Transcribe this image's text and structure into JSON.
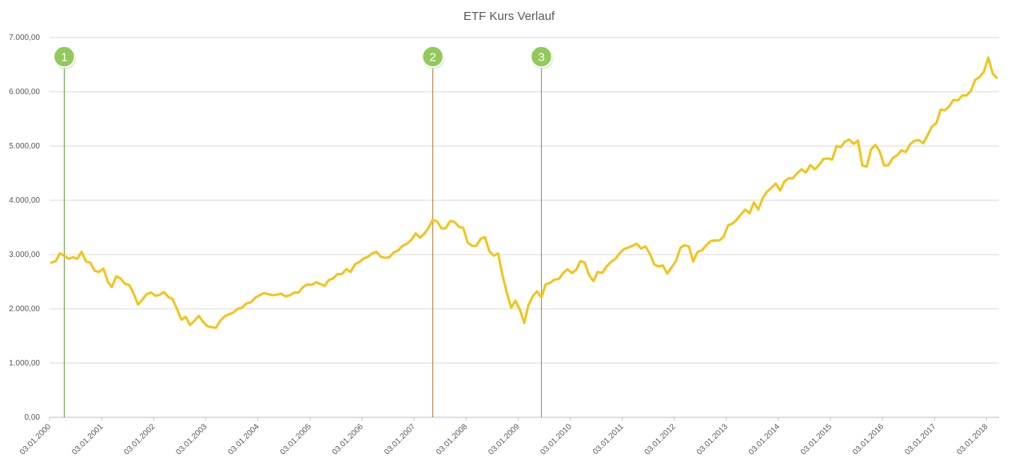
{
  "chart_data": {
    "type": "line",
    "title": "ETF Kurs Verlauf",
    "xlabel": "",
    "ylabel": "",
    "x_range": [
      "03.01.2000",
      "31.03.2018"
    ],
    "ylim": [
      0,
      7000
    ],
    "y_ticks": [
      0,
      1000,
      2000,
      3000,
      4000,
      5000,
      6000,
      7000
    ],
    "y_tick_labels": [
      "0,00",
      "1.000,00",
      "2.000,00",
      "3.000,00",
      "4.000,00",
      "5.000,00",
      "6.000,00",
      "7.000,00"
    ],
    "x_ticks": [
      "03.01.2000",
      "03.01.2001",
      "03.01.2002",
      "03.01.2003",
      "03.01.2004",
      "03.01.2005",
      "03.01.2006",
      "03.01.2007",
      "03.01.2008",
      "03.01.2009",
      "03.01.2010",
      "03.01.2011",
      "03.01.2012",
      "03.01.2013",
      "03.01.2014",
      "03.01.2015",
      "03.01.2016",
      "03.01.2017",
      "03.01.2018"
    ],
    "grid": true,
    "legend": "none",
    "series_color": "#F2C41A",
    "series": [
      {
        "x": [
          "2000-01",
          "2000-02",
          "2000-03",
          "2000-04",
          "2000-05",
          "2000-06",
          "2000-07",
          "2000-08",
          "2000-09",
          "2000-10",
          "2000-11",
          "2000-12",
          "2001-01",
          "2001-02",
          "2001-03",
          "2001-04",
          "2001-05",
          "2001-06",
          "2001-07",
          "2001-08",
          "2001-09",
          "2001-10",
          "2001-11",
          "2001-12",
          "2002-01",
          "2002-02",
          "2002-03",
          "2002-04",
          "2002-05",
          "2002-06",
          "2002-07",
          "2002-08",
          "2002-09",
          "2002-10",
          "2002-11",
          "2002-12",
          "2003-01",
          "2003-02",
          "2003-03",
          "2003-04",
          "2003-05",
          "2003-06",
          "2003-07",
          "2003-08",
          "2003-09",
          "2003-10",
          "2003-11",
          "2003-12",
          "2004-01",
          "2004-02",
          "2004-03",
          "2004-04",
          "2004-05",
          "2004-06",
          "2004-07",
          "2004-08",
          "2004-09",
          "2004-10",
          "2004-11",
          "2004-12",
          "2005-01",
          "2005-02",
          "2005-03",
          "2005-04",
          "2005-05",
          "2005-06",
          "2005-07",
          "2005-08",
          "2005-09",
          "2005-10",
          "2005-11",
          "2005-12",
          "2006-01",
          "2006-02",
          "2006-03",
          "2006-04",
          "2006-05",
          "2006-06",
          "2006-07",
          "2006-08",
          "2006-09",
          "2006-10",
          "2006-11",
          "2006-12",
          "2007-01",
          "2007-02",
          "2007-03",
          "2007-04",
          "2007-05",
          "2007-06",
          "2007-07",
          "2007-08",
          "2007-09",
          "2007-10",
          "2007-11",
          "2007-12",
          "2008-01",
          "2008-02",
          "2008-03",
          "2008-04",
          "2008-05",
          "2008-06",
          "2008-07",
          "2008-08",
          "2008-09",
          "2008-10",
          "2008-11",
          "2008-12",
          "2009-01",
          "2009-02",
          "2009-03",
          "2009-04",
          "2009-05",
          "2009-06",
          "2009-07",
          "2009-08",
          "2009-09",
          "2009-10",
          "2009-11",
          "2009-12",
          "2010-01",
          "2010-02",
          "2010-03",
          "2010-04",
          "2010-05",
          "2010-06",
          "2010-07",
          "2010-08",
          "2010-09",
          "2010-10",
          "2010-11",
          "2010-12",
          "2011-01",
          "2011-02",
          "2011-03",
          "2011-04",
          "2011-05",
          "2011-06",
          "2011-07",
          "2011-08",
          "2011-09",
          "2011-10",
          "2011-11",
          "2011-12",
          "2012-01",
          "2012-02",
          "2012-03",
          "2012-04",
          "2012-05",
          "2012-06",
          "2012-07",
          "2012-08",
          "2012-09",
          "2012-10",
          "2012-11",
          "2012-12",
          "2013-01",
          "2013-02",
          "2013-03",
          "2013-04",
          "2013-05",
          "2013-06",
          "2013-07",
          "2013-08",
          "2013-09",
          "2013-10",
          "2013-11",
          "2013-12",
          "2014-01",
          "2014-02",
          "2014-03",
          "2014-04",
          "2014-05",
          "2014-06",
          "2014-07",
          "2014-08",
          "2014-09",
          "2014-10",
          "2014-11",
          "2014-12",
          "2015-01",
          "2015-02",
          "2015-03",
          "2015-04",
          "2015-05",
          "2015-06",
          "2015-07",
          "2015-08",
          "2015-09",
          "2015-10",
          "2015-11",
          "2015-12",
          "2016-01",
          "2016-02",
          "2016-03",
          "2016-04",
          "2016-05",
          "2016-06",
          "2016-07",
          "2016-08",
          "2016-09",
          "2016-10",
          "2016-11",
          "2016-12",
          "2017-01",
          "2017-02",
          "2017-03",
          "2017-04",
          "2017-05",
          "2017-06",
          "2017-07",
          "2017-08",
          "2017-09",
          "2017-10",
          "2017-11",
          "2017-12",
          "2018-01",
          "2018-02",
          "2018-03"
        ],
        "values": [
          2850,
          2880,
          3020,
          2980,
          2920,
          2950,
          2920,
          3050,
          2870,
          2850,
          2700,
          2680,
          2740,
          2500,
          2400,
          2600,
          2560,
          2460,
          2440,
          2280,
          2080,
          2170,
          2270,
          2300,
          2240,
          2260,
          2310,
          2220,
          2180,
          2000,
          1800,
          1850,
          1700,
          1780,
          1870,
          1760,
          1680,
          1660,
          1650,
          1780,
          1860,
          1900,
          1930,
          2000,
          2020,
          2100,
          2120,
          2200,
          2250,
          2290,
          2270,
          2250,
          2260,
          2280,
          2230,
          2250,
          2300,
          2300,
          2400,
          2450,
          2440,
          2490,
          2460,
          2420,
          2530,
          2560,
          2640,
          2640,
          2730,
          2680,
          2820,
          2860,
          2930,
          2960,
          3020,
          3050,
          2960,
          2940,
          2950,
          3040,
          3080,
          3160,
          3200,
          3270,
          3390,
          3310,
          3380,
          3490,
          3640,
          3610,
          3480,
          3490,
          3620,
          3600,
          3510,
          3490,
          3220,
          3160,
          3160,
          3290,
          3320,
          3060,
          2980,
          3020,
          2620,
          2300,
          2020,
          2150,
          1980,
          1740,
          2060,
          2230,
          2320,
          2210,
          2450,
          2480,
          2540,
          2550,
          2660,
          2730,
          2660,
          2720,
          2880,
          2850,
          2620,
          2510,
          2680,
          2660,
          2780,
          2860,
          2920,
          3020,
          3100,
          3130,
          3160,
          3200,
          3110,
          3150,
          3020,
          2820,
          2780,
          2800,
          2650,
          2760,
          2880,
          3120,
          3170,
          3150,
          2870,
          3050,
          3080,
          3170,
          3250,
          3260,
          3260,
          3330,
          3540,
          3570,
          3640,
          3740,
          3830,
          3760,
          3960,
          3830,
          4040,
          4160,
          4230,
          4310,
          4180,
          4350,
          4400,
          4410,
          4500,
          4570,
          4510,
          4650,
          4570,
          4650,
          4760,
          4770,
          4750,
          5000,
          4980,
          5080,
          5120,
          5040,
          5100,
          4640,
          4620,
          4940,
          5020,
          4900,
          4640,
          4650,
          4780,
          4830,
          4920,
          4890,
          5030,
          5100,
          5110,
          5050,
          5200,
          5360,
          5420,
          5670,
          5660,
          5730,
          5850,
          5840,
          5930,
          5930,
          6020,
          6220,
          6270,
          6370,
          6630,
          6330,
          6260
        ]
      }
    ],
    "markers": [
      {
        "label": "1",
        "x": "2000-04",
        "color": "#5A9F3A",
        "dot_color": "#92C95A"
      },
      {
        "label": "2",
        "x": "2007-05",
        "color": "#B5793E",
        "dot_color": "#92C95A"
      },
      {
        "label": "3",
        "x": "2009-06",
        "color": "#B5793E",
        "dot_color": "#92C95A"
      }
    ]
  }
}
